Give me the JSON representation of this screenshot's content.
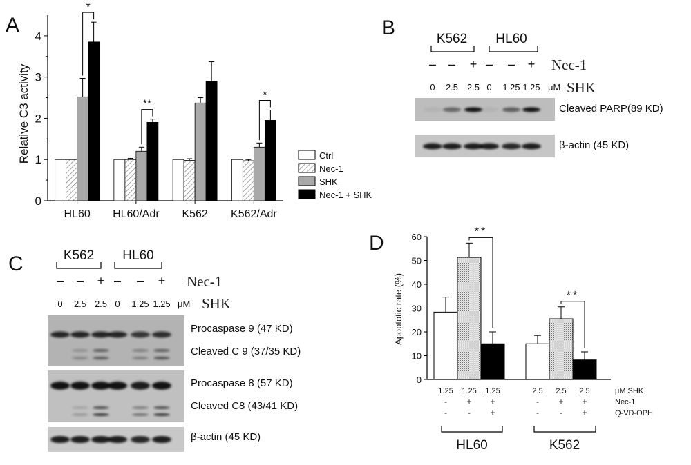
{
  "panel_labels": {
    "a": "A",
    "b": "B",
    "c": "C",
    "d": "D"
  },
  "chart_data": [
    {
      "type": "bar",
      "panel": "A",
      "ylabel": "Relative C3 activity",
      "xlabel": "",
      "ylim": [
        0,
        4.5
      ],
      "yticks": [
        "0",
        "1",
        "2",
        "3",
        "4"
      ],
      "categories": [
        "HL60",
        "HL60/Adr",
        "K562",
        "K562/Adr"
      ],
      "series": [
        {
          "name": "Ctrl",
          "values": [
            1.0,
            1.0,
            1.0,
            1.0
          ],
          "errors": [
            0,
            0,
            0,
            0
          ],
          "color": "#ffffff",
          "pattern": "none"
        },
        {
          "name": "Nec-1",
          "values": [
            1.0,
            1.0,
            0.98,
            0.97
          ],
          "errors": [
            0,
            0.03,
            0.04,
            0.03
          ],
          "color": "#ffffff",
          "pattern": "hatch"
        },
        {
          "name": "SHK",
          "values": [
            2.52,
            1.2,
            2.37,
            1.3
          ],
          "errors": [
            0.45,
            0.1,
            0.13,
            0.1
          ],
          "color": "#a9a9a9",
          "pattern": "none"
        },
        {
          "name": "Nec-1 + SHK",
          "values": [
            3.85,
            1.9,
            2.9,
            1.95
          ],
          "errors": [
            0.48,
            0.08,
            0.47,
            0.25
          ],
          "color": "#000000",
          "pattern": "none"
        }
      ],
      "significance": [
        {
          "group": 0,
          "label": "*"
        },
        {
          "group": 1,
          "label": "**"
        },
        {
          "group": 3,
          "label": "*"
        }
      ]
    },
    {
      "type": "bar",
      "panel": "D",
      "ylabel": "Apoptotic rate (%)",
      "xlabel": "",
      "ylim": [
        0,
        60
      ],
      "yticks": [
        "0",
        "10",
        "20",
        "30",
        "40",
        "50",
        "60"
      ],
      "groups": [
        {
          "name": "HL60",
          "bars": [
            {
              "shk": "1.25",
              "nec1": "-",
              "qvd": "-",
              "value": 28.3,
              "error": 6.3,
              "style": "white"
            },
            {
              "shk": "1.25",
              "nec1": "+",
              "qvd": "-",
              "value": 51.3,
              "error": 6.0,
              "style": "hatch"
            },
            {
              "shk": "1.25",
              "nec1": "+",
              "qvd": "+",
              "value": 15.0,
              "error": 5.0,
              "style": "black"
            }
          ],
          "significance": "**"
        },
        {
          "name": "K562",
          "bars": [
            {
              "shk": "2.5",
              "nec1": "-",
              "qvd": "-",
              "value": 15.0,
              "error": 3.5,
              "style": "white"
            },
            {
              "shk": "2.5",
              "nec1": "+",
              "qvd": "-",
              "value": 25.5,
              "error": 5.0,
              "style": "hatch"
            },
            {
              "shk": "2.5",
              "nec1": "+",
              "qvd": "+",
              "value": 8.2,
              "error": 3.4,
              "style": "black"
            }
          ],
          "significance": "**"
        }
      ],
      "row_labels": [
        "μM SHK",
        "Nec-1",
        "Q-VD-OPH"
      ]
    }
  ],
  "blot_b": {
    "cell_lines": [
      "K562",
      "HL60"
    ],
    "nec1_label": "Nec-1",
    "nec1_signs": [
      "–",
      "–",
      "+",
      "–",
      "–",
      "+"
    ],
    "doses": [
      "0",
      "2.5",
      "2.5",
      "0",
      "1.25",
      "1.25"
    ],
    "dose_unit": "μM",
    "shk_label": "SHK",
    "bands": [
      "Cleaved PARP(89 KD)",
      "β-actin (45 KD)"
    ]
  },
  "blot_c": {
    "cell_lines": [
      "K562",
      "HL60"
    ],
    "nec1_label": "Nec-1",
    "nec1_signs": [
      "–",
      "–",
      "+",
      "–",
      "–",
      "+"
    ],
    "doses": [
      "0",
      "2.5",
      "2.5",
      "0",
      "1.25",
      "1.25"
    ],
    "dose_unit": "μM",
    "shk_label": "SHK",
    "bands": [
      "Procaspase 9 (47 KD)",
      "Cleaved C 9 (37/35 KD)",
      "Procaspase 8 (57 KD)",
      "Cleaved C8 (43/41 KD)",
      "β-actin (45 KD)"
    ]
  }
}
